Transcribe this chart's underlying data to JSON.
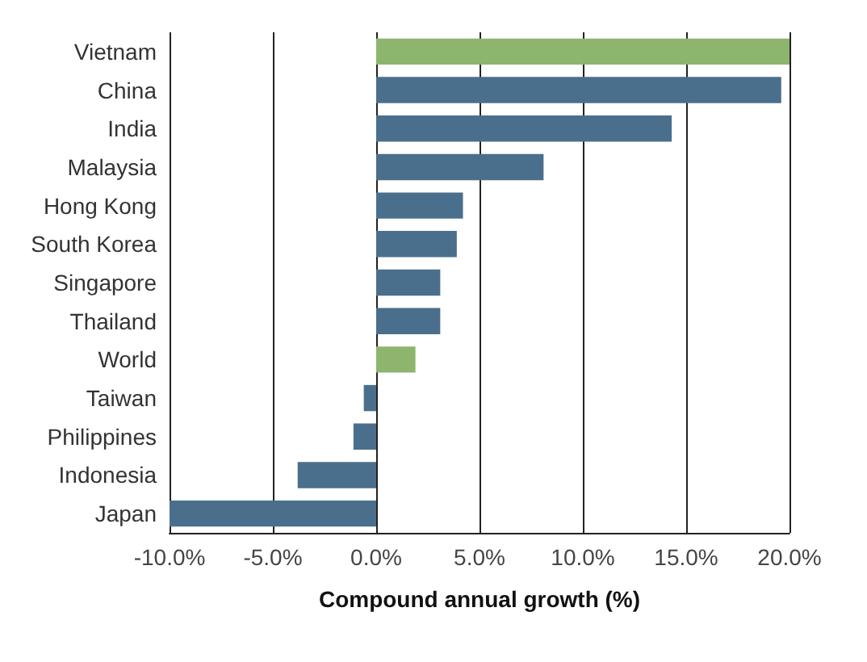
{
  "chart_data": {
    "type": "bar",
    "orientation": "horizontal",
    "xlabel": "Compound annual growth (%)",
    "categories": [
      "Vietnam",
      "China",
      "India",
      "Malaysia",
      "Hong Kong",
      "South Korea",
      "Singapore",
      "Thailand",
      "World",
      "Taiwan",
      "Philippines",
      "Indonesia",
      "Japan"
    ],
    "values": [
      20.0,
      19.6,
      14.3,
      8.1,
      4.2,
      3.9,
      3.1,
      3.1,
      1.9,
      -0.6,
      -1.1,
      -3.8,
      -10.0
    ],
    "colors": [
      "#8db56e",
      "#4a6f8c",
      "#4a6f8c",
      "#4a6f8c",
      "#4a6f8c",
      "#4a6f8c",
      "#4a6f8c",
      "#4a6f8c",
      "#8db56e",
      "#4a6f8c",
      "#4a6f8c",
      "#4a6f8c",
      "#4a6f8c"
    ],
    "xlim": [
      -10,
      20
    ],
    "xticks": [
      {
        "value": -10,
        "label": "-10.0%"
      },
      {
        "value": -5,
        "label": "-5.0%"
      },
      {
        "value": 0,
        "label": "0.0%"
      },
      {
        "value": 5,
        "label": "5.0%"
      },
      {
        "value": 10,
        "label": "10.0%"
      },
      {
        "value": 15,
        "label": "15.0%"
      },
      {
        "value": 20,
        "label": "20.0%"
      }
    ],
    "grid": "x"
  }
}
